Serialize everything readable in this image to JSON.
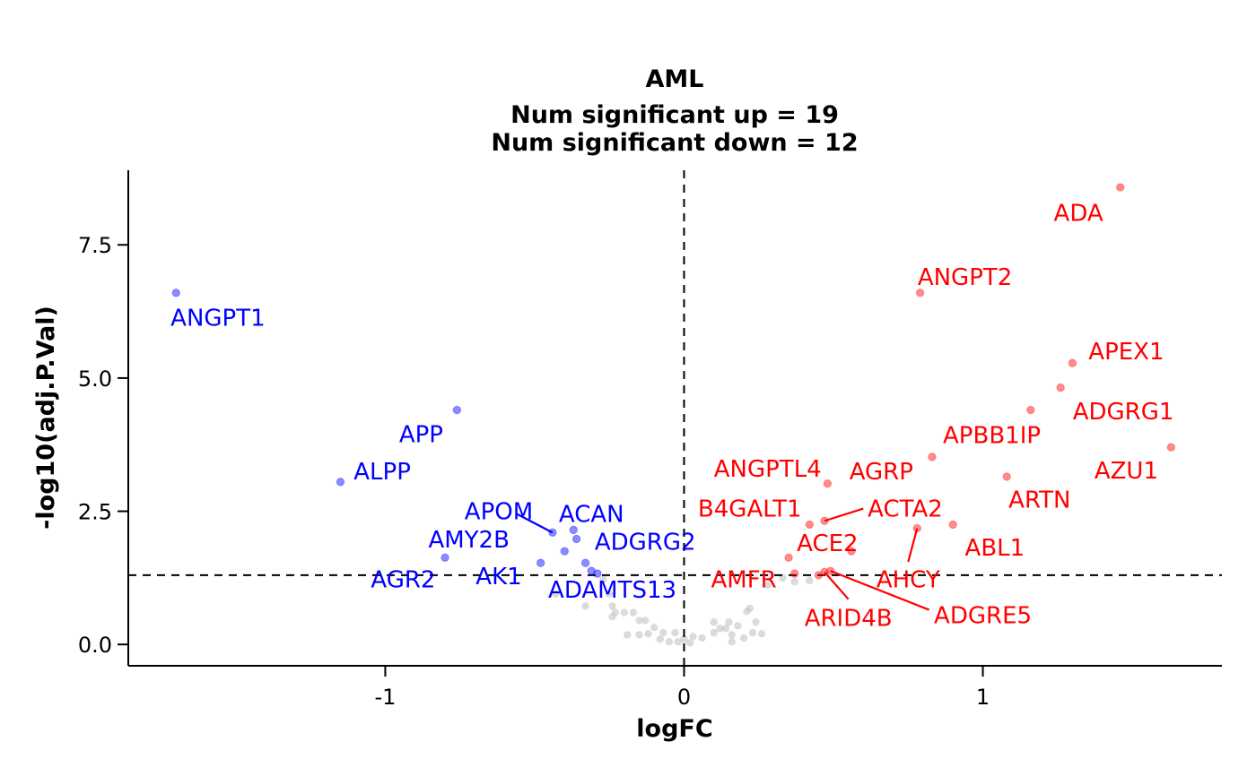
{
  "chart_data": {
    "type": "scatter",
    "title": "AML",
    "subtitle_lines": [
      "Num significant up = 19",
      "Num significant down = 12"
    ],
    "xlabel": "logFC",
    "ylabel": "-log10(adj.P.Val)",
    "xlim": [
      -1.86,
      1.8
    ],
    "ylim": [
      -0.4,
      8.9
    ],
    "x_ticks": [
      -1,
      0,
      1
    ],
    "x_tick_labels": [
      "-1",
      "0",
      "1"
    ],
    "y_ticks": [
      0,
      2.5,
      5,
      7.5
    ],
    "y_tick_labels": [
      "0.0",
      "2.5",
      "5.0",
      "7.5"
    ],
    "thresholds": {
      "vertical_x": 0,
      "horizontal_y": 1.3
    },
    "grid": false,
    "legend": "none",
    "colors": {
      "up": "#ff0000",
      "down": "#0000ff",
      "ns": "#bebebe"
    },
    "up_points": [
      {
        "gene": "ADA",
        "x": 1.46,
        "y": 8.58
      },
      {
        "gene": "ANGPT2",
        "x": 0.79,
        "y": 6.6
      },
      {
        "gene": "APEX1",
        "x": 1.3,
        "y": 5.28
      },
      {
        "gene": "ADGRG1",
        "x": 1.26,
        "y": 4.82
      },
      {
        "gene": "APBB1IP",
        "x": 1.16,
        "y": 4.4
      },
      {
        "gene": "AZU1",
        "x": 1.63,
        "y": 3.7
      },
      {
        "gene": "AGRP",
        "x": 0.83,
        "y": 3.52
      },
      {
        "gene": "ARTN",
        "x": 1.08,
        "y": 3.15
      },
      {
        "gene": "ANGPTL4",
        "x": 0.48,
        "y": 3.02
      },
      {
        "gene": "ACTA2",
        "x": 0.47,
        "y": 2.32
      },
      {
        "gene": "B4GALT1",
        "x": 0.42,
        "y": 2.25
      },
      {
        "gene": "ABL1",
        "x": 0.9,
        "y": 2.25
      },
      {
        "gene": "AHCY",
        "x": 0.78,
        "y": 2.18
      },
      {
        "gene": "ACE2",
        "x": 0.56,
        "y": 1.75
      },
      {
        "gene": "AMFR",
        "x": 0.35,
        "y": 1.63
      },
      {
        "gene": "ADGRE5",
        "x": 0.49,
        "y": 1.38
      },
      {
        "gene": "ARID4B",
        "x": 0.47,
        "y": 1.36
      },
      {
        "gene": "",
        "x": 0.37,
        "y": 1.33
      },
      {
        "gene": "",
        "x": 0.45,
        "y": 1.3
      }
    ],
    "down_points": [
      {
        "gene": "ANGPT1",
        "x": -1.7,
        "y": 6.6
      },
      {
        "gene": "APP",
        "x": -0.76,
        "y": 4.4
      },
      {
        "gene": "ALPP",
        "x": -1.15,
        "y": 3.05
      },
      {
        "gene": "APOM",
        "x": -0.44,
        "y": 2.1
      },
      {
        "gene": "ACAN",
        "x": -0.37,
        "y": 2.15
      },
      {
        "gene": "ADGRG2",
        "x": -0.36,
        "y": 1.98
      },
      {
        "gene": "AMY2B",
        "x": -0.4,
        "y": 1.75
      },
      {
        "gene": "AGR2",
        "x": -0.8,
        "y": 1.63
      },
      {
        "gene": "AK1",
        "x": -0.48,
        "y": 1.53
      },
      {
        "gene": "ADAMTS13",
        "x": -0.33,
        "y": 1.53
      },
      {
        "gene": "",
        "x": -0.31,
        "y": 1.38
      },
      {
        "gene": "",
        "x": -0.29,
        "y": 1.33
      }
    ],
    "ns_points": [
      {
        "x": -0.43,
        "y": 0.95
      },
      {
        "x": -0.33,
        "y": 0.72
      },
      {
        "x": -0.27,
        "y": 1.22
      },
      {
        "x": -0.25,
        "y": 0.95
      },
      {
        "x": -0.24,
        "y": 0.72
      },
      {
        "x": -0.23,
        "y": 0.6
      },
      {
        "x": -0.24,
        "y": 0.52
      },
      {
        "x": -0.2,
        "y": 0.6
      },
      {
        "x": -0.17,
        "y": 0.6
      },
      {
        "x": -0.15,
        "y": 0.45
      },
      {
        "x": -0.13,
        "y": 0.45
      },
      {
        "x": -0.15,
        "y": 0.18
      },
      {
        "x": -0.12,
        "y": 0.2
      },
      {
        "x": -0.1,
        "y": 0.32
      },
      {
        "x": -0.07,
        "y": 0.22
      },
      {
        "x": -0.05,
        "y": 0.05
      },
      {
        "x": -0.03,
        "y": 0.22
      },
      {
        "x": -0.02,
        "y": 0.05
      },
      {
        "x": 0.0,
        "y": 0.1
      },
      {
        "x": 0.02,
        "y": 0.03
      },
      {
        "x": 0.03,
        "y": 0.15
      },
      {
        "x": 0.06,
        "y": 0.12
      },
      {
        "x": 0.1,
        "y": 0.22
      },
      {
        "x": 0.1,
        "y": 0.42
      },
      {
        "x": 0.12,
        "y": 0.3
      },
      {
        "x": 0.15,
        "y": 0.42
      },
      {
        "x": 0.16,
        "y": 0.18
      },
      {
        "x": 0.18,
        "y": 0.35
      },
      {
        "x": 0.16,
        "y": 0.05
      },
      {
        "x": 0.2,
        "y": 0.12
      },
      {
        "x": 0.21,
        "y": 0.62
      },
      {
        "x": 0.22,
        "y": 0.68
      },
      {
        "x": 0.24,
        "y": 0.42
      },
      {
        "x": 0.26,
        "y": 0.2
      },
      {
        "x": 0.28,
        "y": 1.12
      },
      {
        "x": 0.33,
        "y": 1.25
      },
      {
        "x": 0.37,
        "y": 1.18
      },
      {
        "x": 0.42,
        "y": 1.2
      },
      {
        "x": -0.19,
        "y": 0.18
      },
      {
        "x": -0.08,
        "y": 0.1
      },
      {
        "x": 0.14,
        "y": 0.3
      },
      {
        "x": 0.23,
        "y": 0.22
      }
    ],
    "labels": [
      {
        "text": "ADA",
        "group": "up",
        "x": 1.32,
        "y": 8.1
      },
      {
        "text": "ANGPT2",
        "group": "up",
        "x": 0.94,
        "y": 6.9
      },
      {
        "text": "APEX1",
        "group": "up",
        "x": 1.48,
        "y": 5.5
      },
      {
        "text": "ADGRG1",
        "group": "up",
        "x": 1.47,
        "y": 4.38
      },
      {
        "text": "APBB1IP",
        "group": "up",
        "x": 1.03,
        "y": 3.93
      },
      {
        "text": "AZU1",
        "group": "up",
        "x": 1.48,
        "y": 3.27
      },
      {
        "text": "AGRP",
        "group": "up",
        "x": 0.66,
        "y": 3.25
      },
      {
        "text": "ARTN",
        "group": "up",
        "x": 1.19,
        "y": 2.72
      },
      {
        "text": "ANGPTL4",
        "group": "up",
        "x": 0.28,
        "y": 3.3
      },
      {
        "text": "B4GALT1",
        "group": "up",
        "x": 0.22,
        "y": 2.55
      },
      {
        "text": "ACTA2",
        "group": "up",
        "x": 0.74,
        "y": 2.55,
        "lx": 0.6,
        "ly": 2.55
      },
      {
        "text": "ACE2",
        "group": "up",
        "x": 0.48,
        "y": 1.9
      },
      {
        "text": "ABL1",
        "group": "up",
        "x": 1.04,
        "y": 1.82
      },
      {
        "text": "AHCY",
        "group": "up",
        "x": 0.75,
        "y": 1.22,
        "lx": 0.75,
        "ly": 1.55
      },
      {
        "text": "AMFR",
        "group": "up",
        "x": 0.2,
        "y": 1.22
      },
      {
        "text": "ARID4B",
        "group": "up",
        "x": 0.55,
        "y": 0.5,
        "lx": 0.55,
        "ly": 0.85
      },
      {
        "text": "ADGRE5",
        "group": "up",
        "x": 1.0,
        "y": 0.55,
        "lx": 0.82,
        "ly": 0.65
      },
      {
        "text": "ANGPT1",
        "group": "down",
        "x": -1.56,
        "y": 6.13
      },
      {
        "text": "APP",
        "group": "down",
        "x": -0.88,
        "y": 3.95
      },
      {
        "text": "ALPP",
        "group": "down",
        "x": -1.01,
        "y": 3.25
      },
      {
        "text": "APOM",
        "group": "down",
        "x": -0.62,
        "y": 2.5,
        "lx": -0.56,
        "ly": 2.45
      },
      {
        "text": "ACAN",
        "group": "down",
        "x": -0.31,
        "y": 2.45
      },
      {
        "text": "AMY2B",
        "group": "down",
        "x": -0.72,
        "y": 1.97
      },
      {
        "text": "ADGRG2",
        "group": "down",
        "x": -0.13,
        "y": 1.93
      },
      {
        "text": "AGR2",
        "group": "down",
        "x": -0.94,
        "y": 1.22
      },
      {
        "text": "AK1",
        "group": "down",
        "x": -0.62,
        "y": 1.28
      },
      {
        "text": "ADAMTS13",
        "group": "down",
        "x": -0.24,
        "y": 1.03
      }
    ]
  }
}
